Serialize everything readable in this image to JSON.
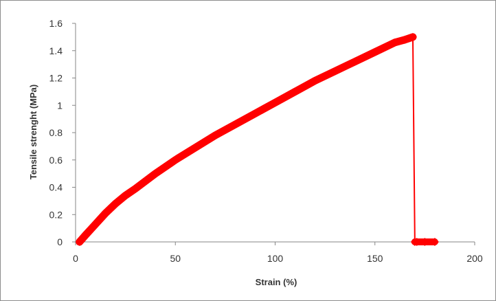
{
  "chart_data": {
    "type": "line",
    "title": "",
    "xlabel": "Strain (%)",
    "ylabel": "Tensile strenght (MPa)",
    "xlim": [
      0,
      200
    ],
    "ylim": [
      0,
      1.6
    ],
    "x_ticks": [
      "0",
      "50",
      "100",
      "150",
      "200"
    ],
    "y_ticks": [
      "0",
      "0.2",
      "0.4",
      "0.6",
      "0.8",
      "1",
      "1.2",
      "1.4",
      "1.6"
    ],
    "grid": false,
    "legend": "none",
    "series": [
      {
        "color": "#ff0000",
        "marker": "diamond",
        "x": [
          2,
          5,
          10,
          15,
          20,
          25,
          30,
          40,
          50,
          60,
          70,
          80,
          90,
          100,
          110,
          120,
          130,
          140,
          150,
          160,
          165,
          169,
          170,
          171,
          175,
          180
        ],
        "y": [
          0,
          0.05,
          0.13,
          0.21,
          0.28,
          0.34,
          0.39,
          0.5,
          0.6,
          0.69,
          0.78,
          0.86,
          0.94,
          1.02,
          1.1,
          1.18,
          1.25,
          1.32,
          1.39,
          1.46,
          1.48,
          1.5,
          0.0,
          0.0,
          0.0,
          0.0
        ]
      }
    ]
  }
}
